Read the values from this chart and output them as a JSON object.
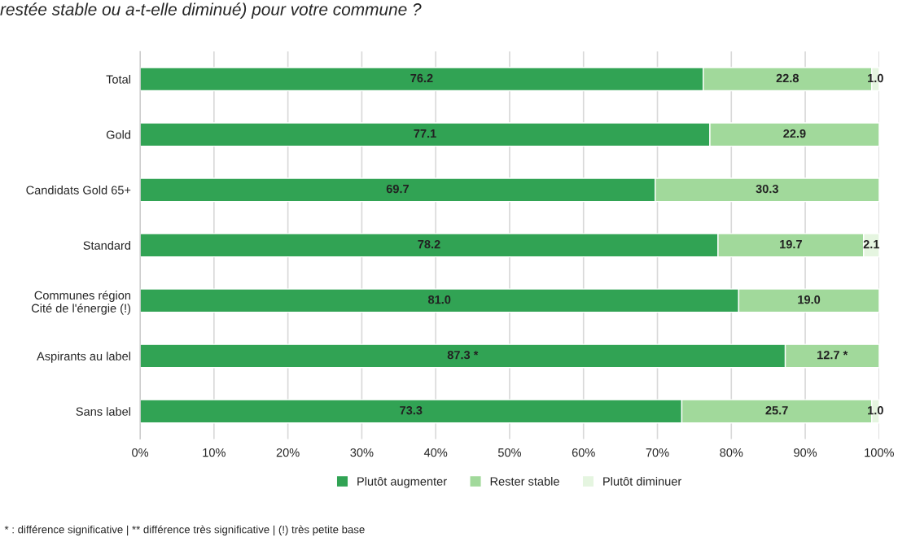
{
  "chart_data": {
    "type": "bar",
    "orientation": "horizontal",
    "stacked": true,
    "title": "restée stable ou a-t-elle diminué) pour votre commune ?",
    "categories": [
      "Total",
      "Gold",
      "Candidats Gold 65+",
      "Standard",
      "Communes région\nCité de l'énergie (!)",
      "Aspirants au label",
      "Sans label"
    ],
    "series": [
      {
        "name": "Plutôt augmenter",
        "color": "#31a354",
        "values": [
          76.2,
          77.1,
          69.7,
          78.2,
          81.0,
          87.3,
          73.3
        ],
        "value_labels": [
          "76.2",
          "77.1",
          "69.7",
          "78.2",
          "81.0",
          "87.3 *",
          "73.3"
        ]
      },
      {
        "name": "Rester stable",
        "color": "#a1d99b",
        "values": [
          22.8,
          22.9,
          30.3,
          19.7,
          19.0,
          12.7,
          25.7
        ],
        "value_labels": [
          "22.8",
          "22.9",
          "30.3",
          "19.7",
          "19.0",
          "12.7 *",
          "25.7"
        ]
      },
      {
        "name": "Plutôt diminuer",
        "color": "#e5f5e0",
        "values": [
          1.0,
          null,
          null,
          2.1,
          null,
          null,
          1.0
        ],
        "value_labels": [
          "1.0",
          null,
          null,
          "2.1",
          null,
          null,
          "1.0"
        ]
      }
    ],
    "xlim": [
      0,
      100
    ],
    "xticks": [
      {
        "value": 0,
        "label": "0%"
      },
      {
        "value": 10,
        "label": "10%"
      },
      {
        "value": 20,
        "label": "20%"
      },
      {
        "value": 30,
        "label": "30%"
      },
      {
        "value": 40,
        "label": "40%"
      },
      {
        "value": 50,
        "label": "50%"
      },
      {
        "value": 60,
        "label": "60%"
      },
      {
        "value": 70,
        "label": "70%"
      },
      {
        "value": 80,
        "label": "80%"
      },
      {
        "value": 90,
        "label": "90%"
      },
      {
        "value": 100,
        "label": "100%"
      }
    ],
    "grid": "x",
    "legend": "bottom",
    "annotations": [
      "* : différence significative | ** différence très significative | (!) très petite base"
    ]
  }
}
